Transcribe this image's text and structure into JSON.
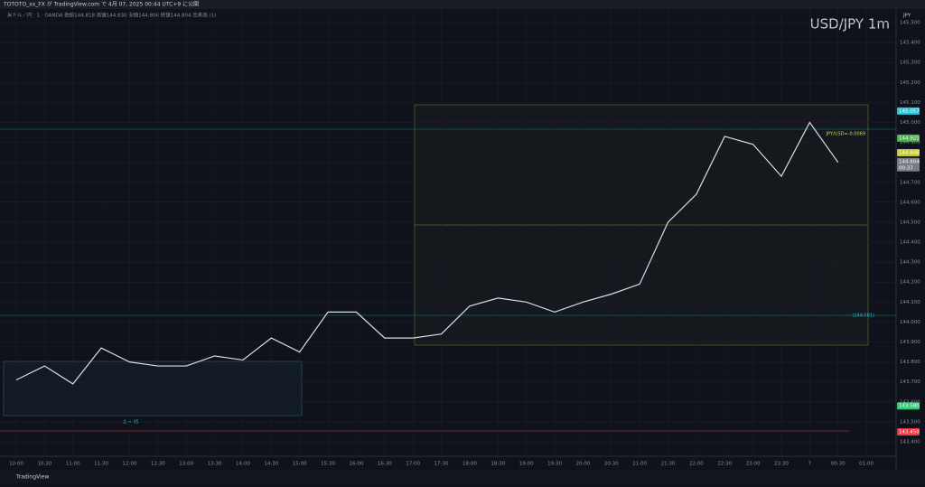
{
  "header": {
    "published": "TOTOTO_xx_FX が TradingView.com で 4月 07, 2025 00:44 UTC+9 に公開",
    "ohlc": "米ドル／円 · 1 · OANDA  始値144.818  高値144.830  安値144.806  終値144.804  出来高 (1)",
    "currency": "JPY"
  },
  "chart_data": {
    "type": "line",
    "title": "USD/JPY 1m",
    "categories": [
      "10:00",
      "10:30",
      "11:00",
      "11:30",
      "12:00",
      "12:30",
      "13:00",
      "13:30",
      "14:00",
      "14:30",
      "15:00",
      "15:30",
      "16:00",
      "16:30",
      "17:00",
      "17:30",
      "18:00",
      "18:30",
      "19:00",
      "19:30",
      "20:00",
      "20:30",
      "21:00",
      "21:30",
      "22:00",
      "22:30",
      "23:00",
      "23:30",
      "7",
      "00:30",
      "01:00"
    ],
    "series": [
      {
        "name": "USD/JPY",
        "color": "#d9dde6",
        "values": [
          143.71,
          143.78,
          143.69,
          143.87,
          143.8,
          143.78,
          143.78,
          143.83,
          143.81,
          143.92,
          143.85,
          144.05,
          144.05,
          143.92,
          143.92,
          143.94,
          144.08,
          144.12,
          144.1,
          144.05,
          144.1,
          144.14,
          144.19,
          144.5,
          144.64,
          144.93,
          144.89,
          144.73,
          145.0,
          144.8,
          null
        ]
      }
    ],
    "ylim": [
      143.4,
      145.5
    ],
    "yticks": [
      {
        "value": 145.5,
        "label": "145.500"
      },
      {
        "value": 145.4,
        "label": "145.400"
      },
      {
        "value": 145.3,
        "label": "145.300"
      },
      {
        "value": 145.2,
        "label": "145.200"
      },
      {
        "value": 145.1,
        "label": "145.100"
      },
      {
        "value": 145.0,
        "label": "145.000"
      },
      {
        "value": 144.9,
        "label": "144.900"
      },
      {
        "value": 144.8,
        "label": "144.800"
      },
      {
        "value": 144.7,
        "label": "144.700"
      },
      {
        "value": 144.6,
        "label": "144.600"
      },
      {
        "value": 144.5,
        "label": "144.500"
      },
      {
        "value": 144.4,
        "label": "144.400"
      },
      {
        "value": 144.3,
        "label": "144.300"
      },
      {
        "value": 144.2,
        "label": "144.200"
      },
      {
        "value": 144.1,
        "label": "144.100"
      },
      {
        "value": 144.0,
        "label": "144.000"
      },
      {
        "value": 143.9,
        "label": "143.900"
      },
      {
        "value": 143.8,
        "label": "143.800"
      },
      {
        "value": 143.7,
        "label": "143.700"
      },
      {
        "value": 143.6,
        "label": "143.600"
      },
      {
        "value": 143.5,
        "label": "143.500"
      },
      {
        "value": 143.4,
        "label": "143.400"
      }
    ],
    "grid": true,
    "price_labels": [
      {
        "value": 145.057,
        "label": "145.057",
        "color": "#26c6da"
      },
      {
        "value": 144.921,
        "label": "144.921",
        "color": "#4caf50"
      },
      {
        "value": 144.848,
        "label": "144.848",
        "color": "#c8c830"
      },
      {
        "value": 144.804,
        "label": "144.804",
        "color": "#787b86",
        "countdown": "00:37"
      },
      {
        "value": 143.58,
        "label": "143.580",
        "color": "#2ecc71"
      },
      {
        "value": 143.45,
        "label": "143.450",
        "color": "#f23645"
      }
    ],
    "annotations": [
      "JPY/USD=-0.0069",
      "(144.001)",
      "Δ = 45"
    ],
    "footer": "TradingView"
  }
}
